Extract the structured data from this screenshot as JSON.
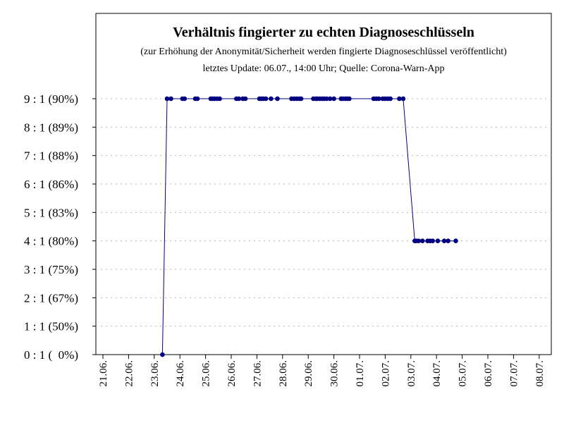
{
  "chart_data": {
    "type": "line",
    "title": "Verhältnis fingierter zu echten Diagnoseschlüsseln",
    "subtitle": "(zur Erhöhung der Anonymität/Sicherheit werden fingierte Diagnoseschlüssel veröffentlicht)",
    "update_note": "letztes Update: 06.07., 14:00 Uhr; Quelle: Corona-Warn-App",
    "xlabel": "",
    "ylabel": "",
    "x_tick_labels": [
      "21.06.",
      "22.06.",
      "23.06.",
      "24.06.",
      "25.06.",
      "26.06.",
      "27.06.",
      "28.06.",
      "29.06.",
      "30.06.",
      "01.07.",
      "02.07.",
      "03.07.",
      "04.07.",
      "05.07.",
      "06.07.",
      "07.07.",
      "08.07."
    ],
    "y_tick_labels": [
      "0 : 1 (  0%)",
      "1 : 1 (50%)",
      "2 : 1 (67%)",
      "3 : 1 (75%)",
      "4 : 1 (80%)",
      "5 : 1 (83%)",
      "6 : 1 (86%)",
      "7 : 1 (88%)",
      "8 : 1 (89%)",
      "9 : 1 (90%)"
    ],
    "xlim": [
      -0.05,
      17.2
    ],
    "ylim": [
      0,
      9
    ],
    "grid": "horizontal-dotted",
    "line_color": "#000080",
    "marker_color": "#000080",
    "series": [
      {
        "x": [
          2.32,
          2.5,
          2.65,
          3.1,
          3.18,
          3.6,
          3.68,
          4.2,
          4.28,
          4.35,
          4.45,
          4.55,
          5.2,
          5.3,
          5.45,
          5.55,
          6.1,
          6.18,
          6.25,
          6.35,
          6.55,
          6.8,
          7.35,
          7.45,
          7.55,
          7.65,
          7.72,
          8.2,
          8.3,
          8.35,
          8.45,
          8.55,
          8.62,
          8.72,
          8.85,
          9.0,
          9.28,
          9.35,
          9.45,
          9.52,
          9.6,
          10.55,
          10.65,
          10.75,
          10.9,
          11.0,
          11.1,
          11.2,
          11.55,
          11.7,
          12.15,
          12.2,
          12.3,
          12.45,
          12.65,
          12.75,
          12.85,
          13.05,
          13.3,
          13.45,
          13.75
        ],
        "y": [
          0,
          9,
          9,
          9,
          9,
          9,
          9,
          9,
          9,
          9,
          9,
          9,
          9,
          9,
          9,
          9,
          9,
          9,
          9,
          9,
          9,
          9,
          9,
          9,
          9,
          9,
          9,
          9,
          9,
          9,
          9,
          9,
          9,
          9,
          9,
          9,
          9,
          9,
          9,
          9,
          9,
          9,
          9,
          9,
          9,
          9,
          9,
          9,
          9,
          9,
          4,
          4,
          4,
          4,
          4,
          4,
          4,
          4,
          4,
          4,
          4
        ]
      }
    ]
  }
}
